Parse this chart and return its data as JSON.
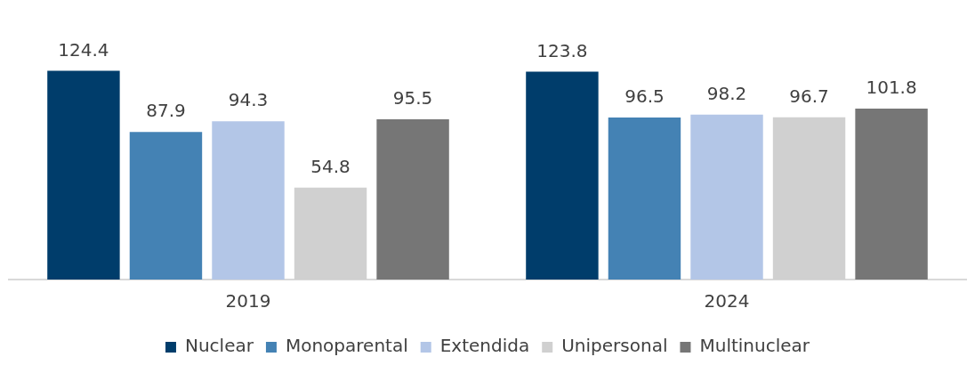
{
  "chart_data": {
    "type": "bar",
    "categories": [
      "2019",
      "2024"
    ],
    "series": [
      {
        "name": "Nuclear",
        "color": "#003d6b",
        "values": [
          124.4,
          123.8
        ]
      },
      {
        "name": "Monoparental",
        "color": "#4482b4",
        "values": [
          87.9,
          96.5
        ]
      },
      {
        "name": "Extendida",
        "color": "#b3c6e7",
        "values": [
          94.3,
          98.2
        ]
      },
      {
        "name": "Unipersonal",
        "color": "#d0d0d0",
        "values": [
          54.8,
          96.7
        ]
      },
      {
        "name": "Multinuclear",
        "color": "#767676",
        "values": [
          95.5,
          101.8
        ]
      }
    ],
    "data_labels": true,
    "legend": "bottom",
    "grid": false
  }
}
